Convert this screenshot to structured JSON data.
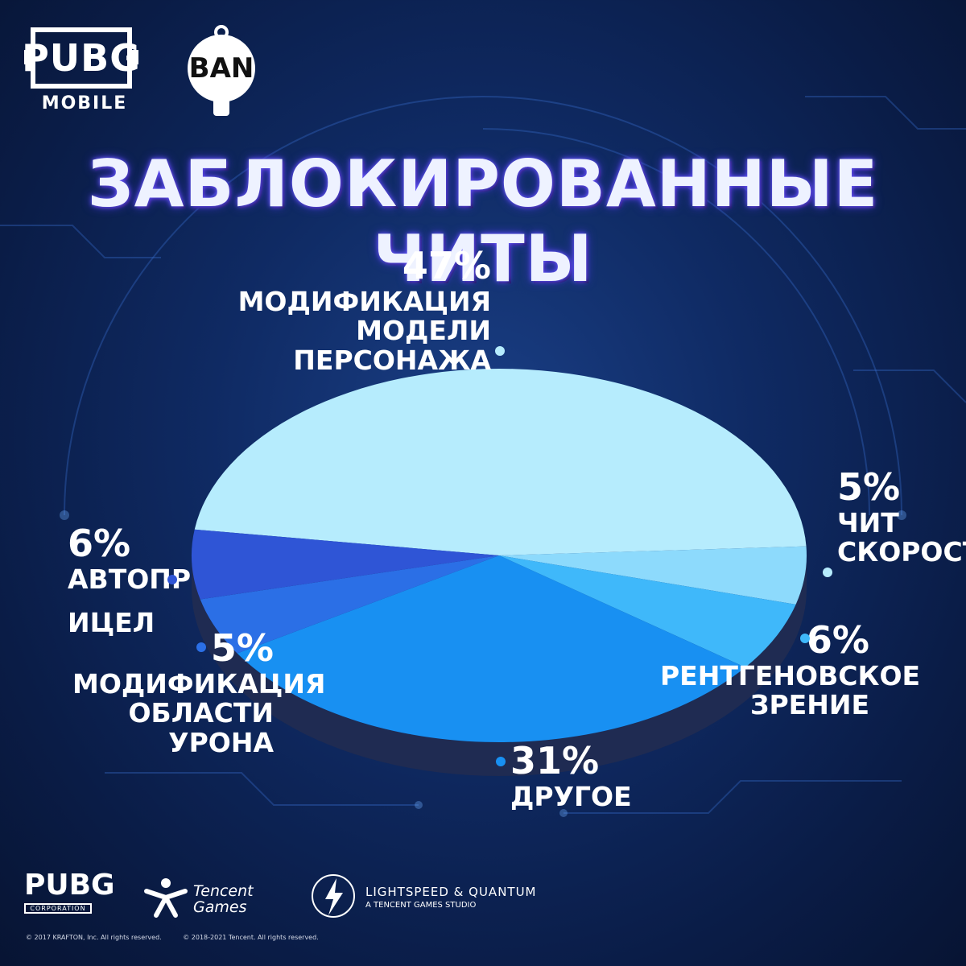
{
  "brand": {
    "logo_text": "PUBG",
    "logo_sub": "MOBILE",
    "ban_text": "BAN"
  },
  "title": "ЗАБЛОКИРОВАННЫЕ ЧИТЫ",
  "colors": {
    "background": "#0f2a63",
    "slice_model_mod": "#b6ecfd",
    "slice_speed": "#8ddafc",
    "slice_xray": "#3fb8fa",
    "slice_other": "#1890f2",
    "slice_area_mod": "#2b6fe6",
    "slice_aimbot": "#2f55d6"
  },
  "chart_data": {
    "type": "pie",
    "title": "ЗАБЛОКИРОВАННЫЕ ЧИТЫ",
    "style": "3d-tilted",
    "slices": [
      {
        "key": "model_mod",
        "label_line1": "МОДИФИКАЦИЯ",
        "label_line2": "МОДЕЛИ ПЕРСОНАЖА",
        "value": 47,
        "percent_text": "47%",
        "color": "#b6ecfd"
      },
      {
        "key": "speed",
        "label_line1": "ЧИТ",
        "label_line2": "СКОРОСТИ",
        "value": 5,
        "percent_text": "5%",
        "color": "#8ddafc"
      },
      {
        "key": "xray",
        "label_line1": "РЕНТГЕНОВСКОЕ",
        "label_line2": "ЗРЕНИЕ",
        "value": 6,
        "percent_text": "6%",
        "color": "#3fb8fa"
      },
      {
        "key": "other",
        "label_line1": "ДРУГОЕ",
        "label_line2": "",
        "value": 31,
        "percent_text": "31%",
        "color": "#1890f2"
      },
      {
        "key": "area_mod",
        "label_line1": "МОДИФИКАЦИЯ",
        "label_line2": "ОБЛАСТИ УРОНА",
        "value": 5,
        "percent_text": "5%",
        "color": "#2b6fe6"
      },
      {
        "key": "aimbot",
        "label_line1": "АВТОПР",
        "label_line2": "ИЦЕЛ",
        "value": 6,
        "percent_text": "6%",
        "color": "#2f55d6"
      }
    ]
  },
  "footer": {
    "pubg_corp_big": "PUBG",
    "pubg_corp_small": "CORPORATION",
    "tencent_line1": "Tencent",
    "tencent_line2": "Games",
    "lq_line1": "LIGHTSPEED & QUANTUM",
    "lq_line2": "A TENCENT GAMES STUDIO",
    "copyright1": "© 2017 KRAFTON, Inc. All rights reserved.",
    "copyright2": "© 2018-2021 Tencent. All rights reserved."
  }
}
